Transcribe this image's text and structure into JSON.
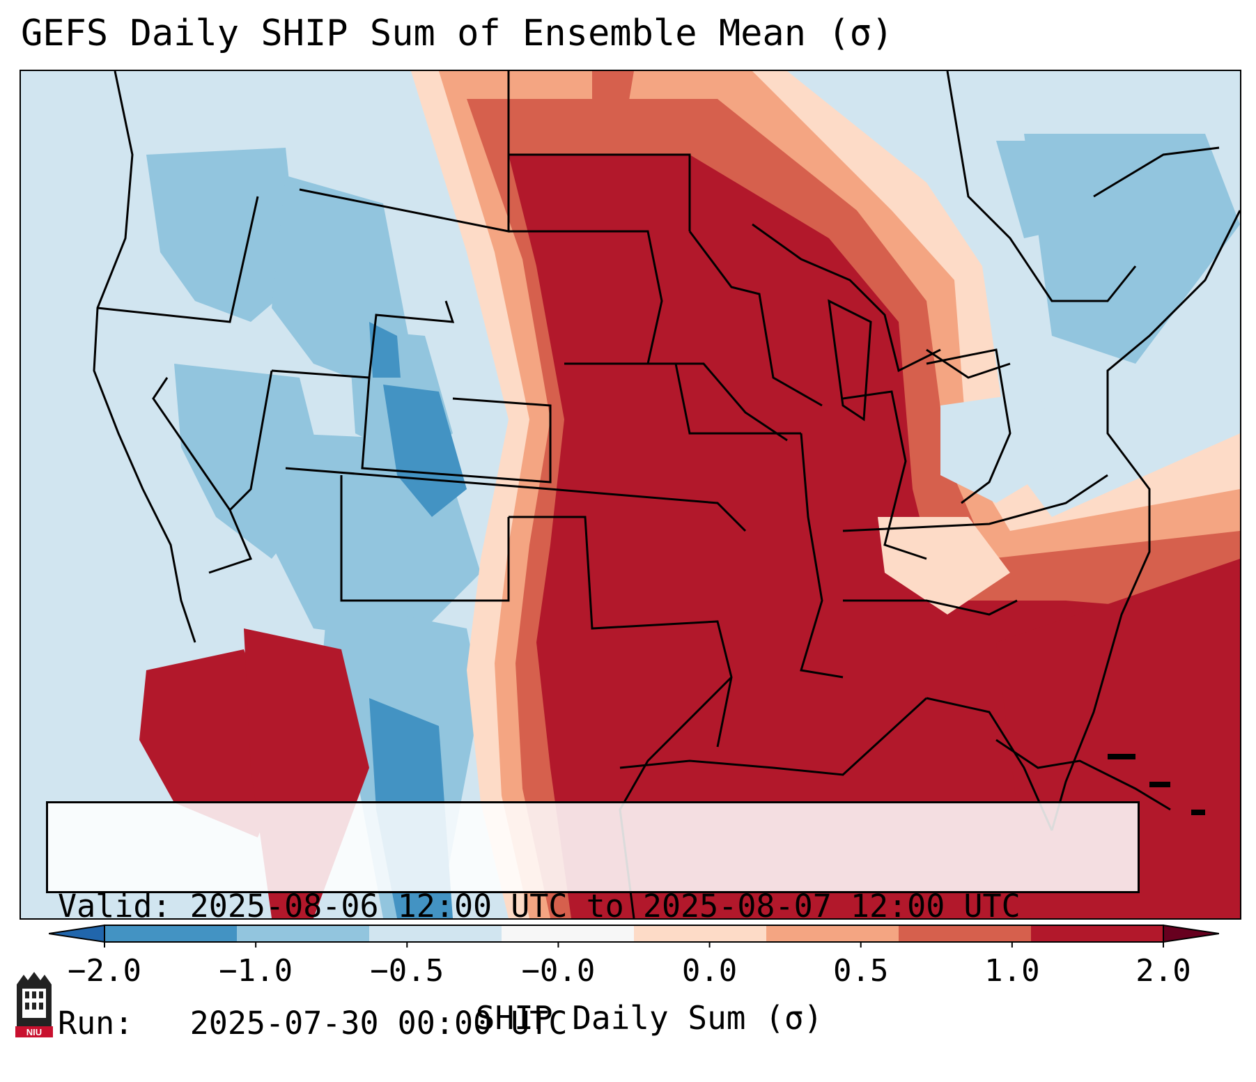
{
  "title": "GEFS Daily SHIP Sum of Ensemble Mean (σ)",
  "info": {
    "valid_line": "Valid: 2025-08-06 12:00 UTC to 2025-08-07 12:00 UTC",
    "run_line": "Run:   2025-07-30 00:00 UTC"
  },
  "colorbar": {
    "label": "SHIP Daily Sum (σ)",
    "ticks": [
      "−2.0",
      "−1.0",
      "−0.5",
      "−0.0",
      "0.0",
      "0.5",
      "1.0",
      "2.0"
    ],
    "colors": [
      "#4393c3",
      "#92c5de",
      "#d1e5f0",
      "#f7f7f7",
      "#fddbc7",
      "#f4a582",
      "#d6604d",
      "#b2182b"
    ],
    "extend": "both"
  },
  "logo": {
    "text": "NIU",
    "icon": "university-tower-icon"
  },
  "map": {
    "region": "Contiguous United States",
    "palette": {
      "strong_blue": "#4393c3",
      "blue": "#92c5de",
      "light_blue": "#d1e5f0",
      "peach": "#fddbc7",
      "salmon": "#f4a582",
      "red": "#d6604d",
      "dark_red": "#b2182b"
    }
  }
}
